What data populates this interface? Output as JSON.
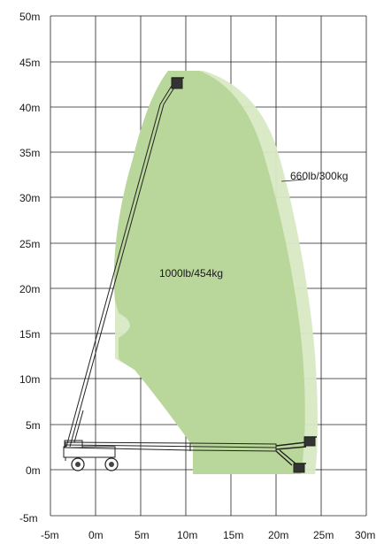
{
  "chart_data": {
    "type": "area",
    "x_ticks": [
      "-5m",
      "0m",
      "5m",
      "10m",
      "15m",
      "20m",
      "25m",
      "30m"
    ],
    "y_ticks": [
      "50m",
      "45m",
      "40m",
      "35m",
      "30m",
      "25m",
      "20m",
      "15m",
      "10m",
      "5m",
      "0m",
      "-5m"
    ],
    "xlim": [
      -5,
      30
    ],
    "ylim": [
      -5,
      50
    ],
    "grid": true,
    "zones": [
      {
        "label": "1000lb/454kg",
        "color": "#b9d79a"
      },
      {
        "label": "660lb/300kg",
        "color": "#d8e9c3"
      }
    ]
  }
}
